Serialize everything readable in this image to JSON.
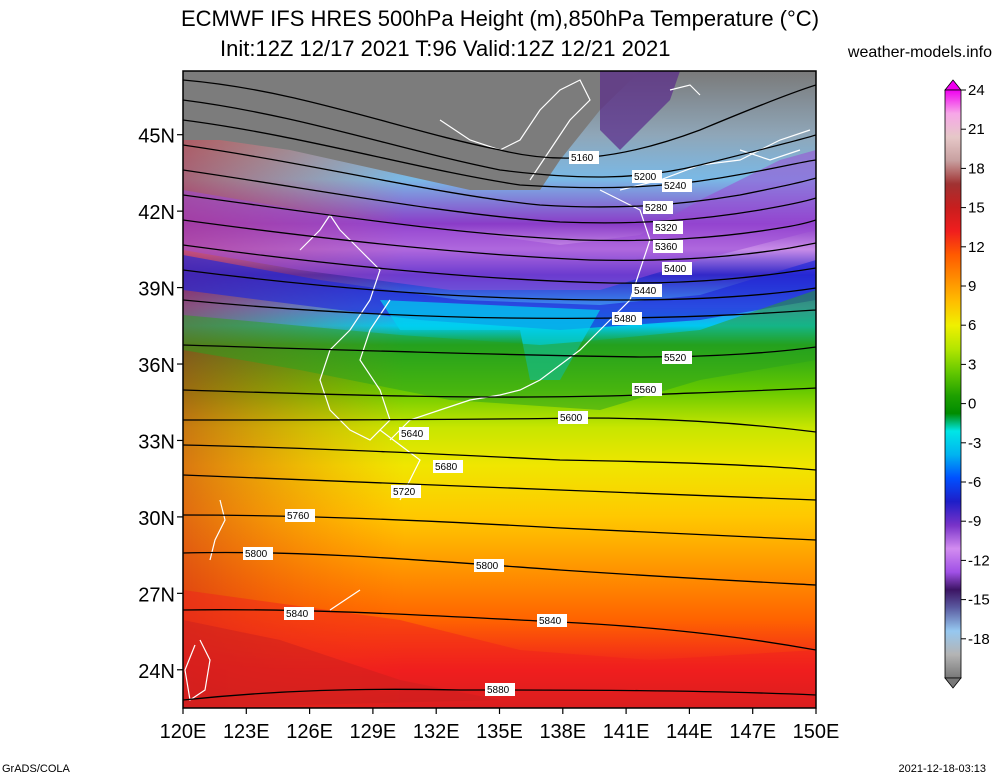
{
  "title": {
    "line1": "ECMWF IFS HRES 500hPa Height (m),850hPa Temperature (°C)",
    "line2": "Init:12Z 12/17 2021 T:96 Valid:12Z 12/21 2021"
  },
  "credit": "weather-models.info",
  "footer": {
    "left": "GrADS/COLA",
    "right": "2021-12-18-03:13"
  },
  "map": {
    "lat_labels": [
      "45N",
      "42N",
      "39N",
      "36N",
      "33N",
      "30N",
      "27N",
      "24N"
    ],
    "lat_values": [
      45,
      42,
      39,
      36,
      33,
      30,
      27,
      24
    ],
    "lon_labels": [
      "120E",
      "123E",
      "126E",
      "129E",
      "132E",
      "135E",
      "138E",
      "141E",
      "144E",
      "147E",
      "150E"
    ],
    "lon_values": [
      120,
      123,
      126,
      129,
      132,
      135,
      138,
      141,
      144,
      147,
      150
    ],
    "lat_range": [
      22.5,
      47.5
    ],
    "lon_range": [
      120,
      150
    ]
  },
  "colorbar": {
    "labels": [
      "24",
      "21",
      "18",
      "15",
      "12",
      "9",
      "6",
      "3",
      "0",
      "-3",
      "-6",
      "-9",
      "-12",
      "-15",
      "-18"
    ],
    "colors": [
      "#f000f0",
      "#f7a7e8",
      "#e6c8c8",
      "#c8a0a0",
      "#a03232",
      "#c81e1e",
      "#f01e1e",
      "#ff5a00",
      "#ff8c00",
      "#ffbe00",
      "#f0f000",
      "#b4e600",
      "#64c800",
      "#1ea000",
      "#008c00",
      "#00e6e6",
      "#00b4f0",
      "#0050ff",
      "#1e1ec8",
      "#3c00b4",
      "#7832c8",
      "#a050e6",
      "#d28cf0",
      "#6e1e96",
      "#3c1464",
      "#5a5aa0",
      "#7878c8",
      "#96c8f0",
      "#b4b4b4",
      "#787878"
    ]
  },
  "height_contours": [
    {
      "label": "5160"
    },
    {
      "label": "5200"
    },
    {
      "label": "5240"
    },
    {
      "label": "5280"
    },
    {
      "label": "5320"
    },
    {
      "label": "5360"
    },
    {
      "label": "5400"
    },
    {
      "label": "5440"
    },
    {
      "label": "5480"
    },
    {
      "label": "5520"
    },
    {
      "label": "5560"
    },
    {
      "label": "5600"
    },
    {
      "label": "5640"
    },
    {
      "label": "5680"
    },
    {
      "label": "5720"
    },
    {
      "label": "5760"
    },
    {
      "label": "5800"
    },
    {
      "label": "5800"
    },
    {
      "label": "5840"
    },
    {
      "label": "5840"
    },
    {
      "label": "5880"
    }
  ]
}
